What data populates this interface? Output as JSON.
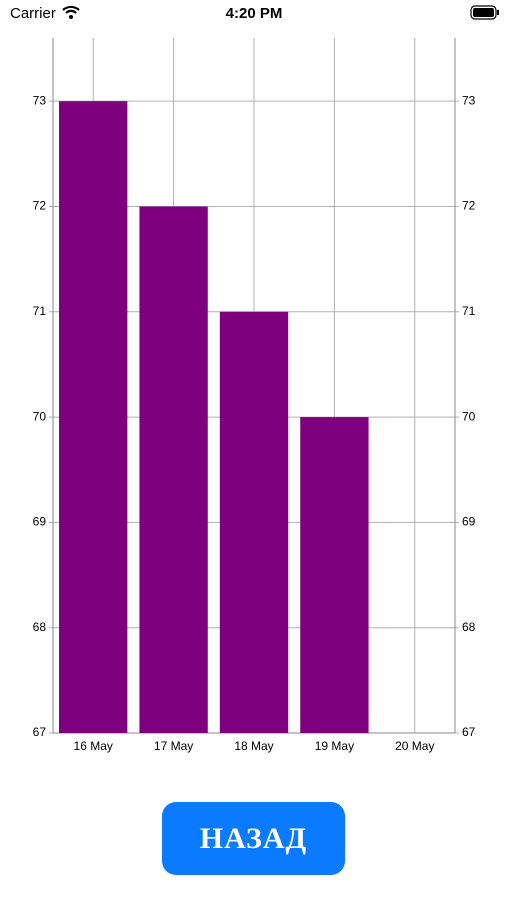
{
  "status_bar": {
    "carrier": "Carrier",
    "time": "4:20 PM"
  },
  "chart_data": {
    "type": "bar",
    "categories": [
      "16 May",
      "17 May",
      "18 May",
      "19 May",
      "20 May"
    ],
    "values": [
      73,
      72,
      71,
      70,
      null
    ],
    "color": "#7f007f",
    "ylim": [
      67,
      73.6
    ],
    "yticks": [
      67,
      68,
      69,
      70,
      71,
      72,
      73
    ],
    "y2lim": [
      67,
      73.6
    ],
    "y2ticks": [
      67,
      68,
      69,
      70,
      71,
      72,
      73
    ],
    "grid": true
  },
  "button": {
    "label": "НАЗАД"
  }
}
